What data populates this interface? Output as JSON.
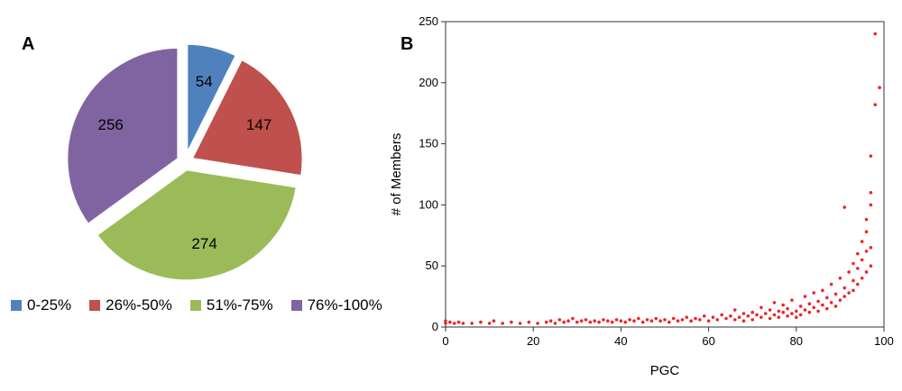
{
  "panels": {
    "a_label": "A",
    "b_label": "B"
  },
  "chart_data": [
    {
      "type": "pie",
      "categories": [
        "0-25%",
        "26%-50%",
        "51%-75%",
        "76%-100%"
      ],
      "values": [
        54,
        147,
        274,
        256
      ],
      "labels": [
        "54",
        "147",
        "274",
        "256"
      ],
      "colors": [
        "#4f81bd",
        "#c0504d",
        "#9bbb59",
        "#8064a2"
      ],
      "exploded": true,
      "legend": "bottom"
    },
    {
      "type": "scatter",
      "xlabel": "PGC",
      "ylabel": "# of Members",
      "xlim": [
        0,
        100
      ],
      "ylim": [
        0,
        250
      ],
      "xticks": [
        "0",
        "20",
        "40",
        "60",
        "80",
        "100"
      ],
      "yticks": [
        "0",
        "50",
        "100",
        "150",
        "200",
        "250"
      ],
      "color": "#e8282b",
      "grid": false,
      "points": [
        [
          0,
          5
        ],
        [
          0,
          3
        ],
        [
          1,
          4
        ],
        [
          2,
          3
        ],
        [
          3,
          4
        ],
        [
          4,
          3
        ],
        [
          6,
          3
        ],
        [
          8,
          4
        ],
        [
          10,
          3
        ],
        [
          11,
          5
        ],
        [
          13,
          3
        ],
        [
          15,
          4
        ],
        [
          17,
          3
        ],
        [
          19,
          4
        ],
        [
          21,
          3
        ],
        [
          23,
          4
        ],
        [
          24,
          5
        ],
        [
          25,
          3
        ],
        [
          26,
          6
        ],
        [
          27,
          4
        ],
        [
          28,
          5
        ],
        [
          29,
          7
        ],
        [
          30,
          4
        ],
        [
          31,
          5
        ],
        [
          32,
          6
        ],
        [
          33,
          4
        ],
        [
          34,
          5
        ],
        [
          35,
          4
        ],
        [
          36,
          6
        ],
        [
          37,
          5
        ],
        [
          38,
          4
        ],
        [
          39,
          6
        ],
        [
          40,
          5
        ],
        [
          41,
          4
        ],
        [
          42,
          6
        ],
        [
          43,
          5
        ],
        [
          44,
          7
        ],
        [
          45,
          4
        ],
        [
          46,
          6
        ],
        [
          47,
          5
        ],
        [
          48,
          7
        ],
        [
          49,
          5
        ],
        [
          50,
          6
        ],
        [
          51,
          4
        ],
        [
          52,
          7
        ],
        [
          53,
          5
        ],
        [
          54,
          6
        ],
        [
          55,
          8
        ],
        [
          56,
          5
        ],
        [
          57,
          7
        ],
        [
          58,
          6
        ],
        [
          59,
          9
        ],
        [
          60,
          5
        ],
        [
          61,
          8
        ],
        [
          62,
          6
        ],
        [
          63,
          10
        ],
        [
          64,
          7
        ],
        [
          65,
          9
        ],
        [
          66,
          6
        ],
        [
          66,
          14
        ],
        [
          67,
          8
        ],
        [
          68,
          11
        ],
        [
          68,
          5
        ],
        [
          69,
          9
        ],
        [
          70,
          12
        ],
        [
          70,
          6
        ],
        [
          71,
          10
        ],
        [
          72,
          8
        ],
        [
          72,
          16
        ],
        [
          73,
          11
        ],
        [
          74,
          7
        ],
        [
          74,
          14
        ],
        [
          75,
          10
        ],
        [
          75,
          20
        ],
        [
          76,
          8
        ],
        [
          76,
          13
        ],
        [
          77,
          12
        ],
        [
          77,
          18
        ],
        [
          78,
          9
        ],
        [
          78,
          15
        ],
        [
          79,
          11
        ],
        [
          79,
          22
        ],
        [
          80,
          13
        ],
        [
          80,
          8
        ],
        [
          81,
          17
        ],
        [
          81,
          10
        ],
        [
          82,
          14
        ],
        [
          82,
          25
        ],
        [
          83,
          12
        ],
        [
          83,
          19
        ],
        [
          84,
          16
        ],
        [
          84,
          28
        ],
        [
          85,
          13
        ],
        [
          85,
          21
        ],
        [
          86,
          18
        ],
        [
          86,
          30
        ],
        [
          87,
          15
        ],
        [
          87,
          24
        ],
        [
          88,
          20
        ],
        [
          88,
          35
        ],
        [
          89,
          17
        ],
        [
          89,
          27
        ],
        [
          90,
          22
        ],
        [
          90,
          40
        ],
        [
          91,
          25
        ],
        [
          91,
          32
        ],
        [
          91,
          98
        ],
        [
          92,
          28
        ],
        [
          92,
          45
        ],
        [
          93,
          30
        ],
        [
          93,
          38
        ],
        [
          93,
          52
        ],
        [
          94,
          35
        ],
        [
          94,
          48
        ],
        [
          94,
          60
        ],
        [
          95,
          40
        ],
        [
          95,
          55
        ],
        [
          95,
          70
        ],
        [
          96,
          45
        ],
        [
          96,
          62
        ],
        [
          96,
          78
        ],
        [
          96,
          88
        ],
        [
          97,
          50
        ],
        [
          97,
          65
        ],
        [
          97,
          100
        ],
        [
          97,
          110
        ],
        [
          97,
          140
        ],
        [
          98,
          182
        ],
        [
          98,
          240
        ],
        [
          99,
          196
        ]
      ]
    }
  ]
}
